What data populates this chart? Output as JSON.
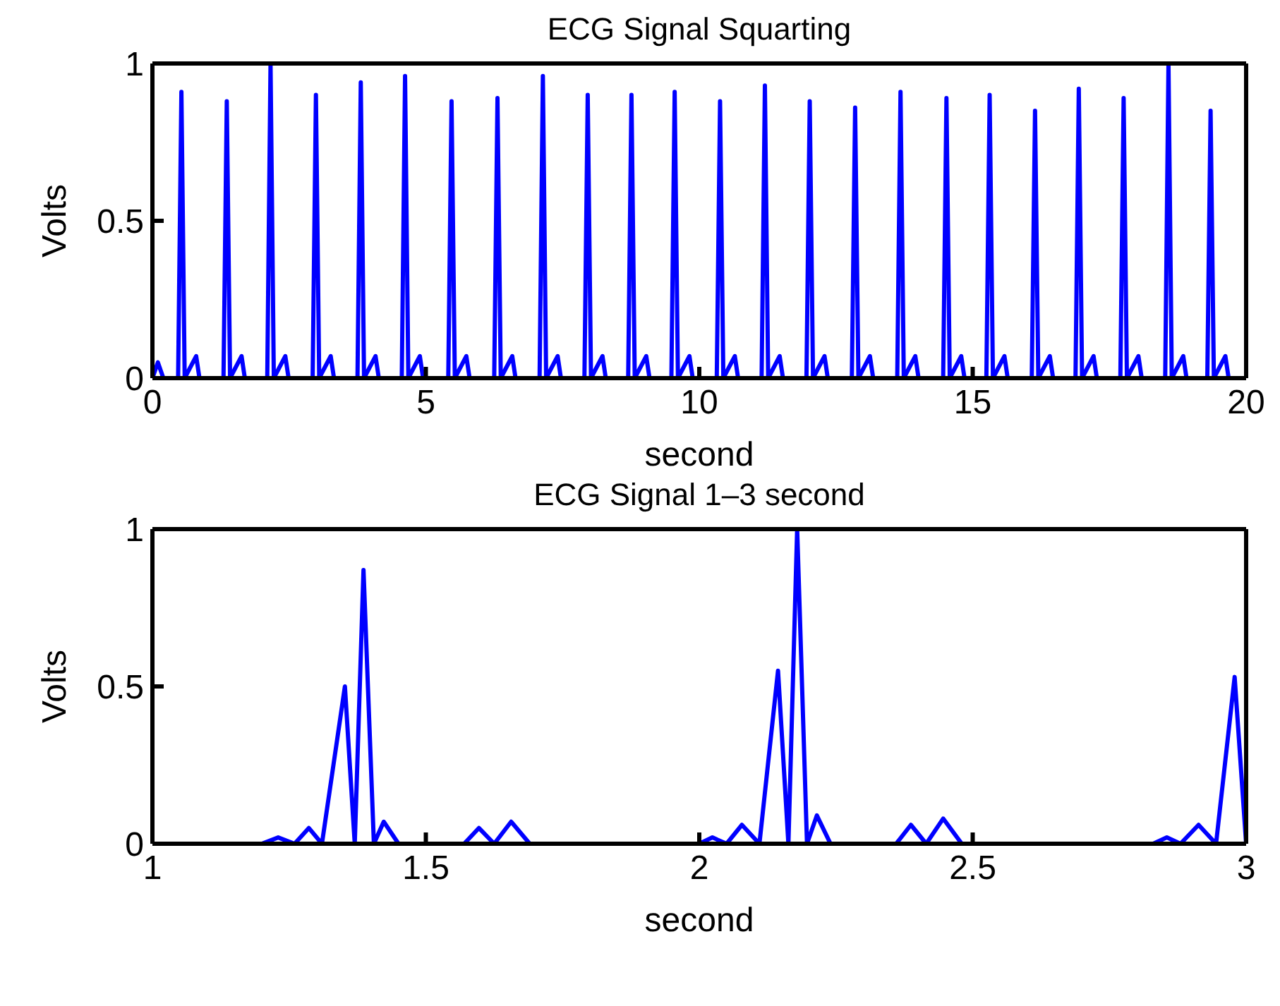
{
  "chart_data": [
    {
      "type": "line",
      "title": "ECG Signal Squarting",
      "xlabel": "second",
      "ylabel": "Volts",
      "x": [
        0,
        0.1,
        0.2,
        0.47,
        0.53,
        0.59,
        0.8,
        0.86,
        1.3,
        1.36,
        1.42,
        1.63,
        1.69,
        2.1,
        2.16,
        2.22,
        2.43,
        2.49,
        2.93,
        2.99,
        3.05,
        3.26,
        3.32,
        3.75,
        3.81,
        3.87,
        4.08,
        4.14,
        4.56,
        4.62,
        4.68,
        4.89,
        4.95,
        5.41,
        5.47,
        5.53,
        5.74,
        5.8,
        6.25,
        6.31,
        6.37,
        6.58,
        6.64,
        7.08,
        7.14,
        7.2,
        7.41,
        7.47,
        7.9,
        7.96,
        8.02,
        8.23,
        8.29,
        8.7,
        8.76,
        8.82,
        9.03,
        9.09,
        9.49,
        9.55,
        9.61,
        9.82,
        9.88,
        10.32,
        10.38,
        10.44,
        10.65,
        10.71,
        11.14,
        11.2,
        11.26,
        11.47,
        11.53,
        11.96,
        12.02,
        12.08,
        12.29,
        12.35,
        12.79,
        12.85,
        12.91,
        13.12,
        13.18,
        13.62,
        13.68,
        13.74,
        13.95,
        14.01,
        14.46,
        14.52,
        14.58,
        14.79,
        14.85,
        15.25,
        15.31,
        15.37,
        15.58,
        15.64,
        16.08,
        16.14,
        16.2,
        16.41,
        16.47,
        16.88,
        16.94,
        17.0,
        17.21,
        17.27,
        17.7,
        17.76,
        17.82,
        18.03,
        18.09,
        18.52,
        18.58,
        18.64,
        18.85,
        18.91,
        19.29,
        19.35,
        19.41,
        19.62,
        19.68,
        20
      ],
      "series": [
        {
          "color": "#0000ff",
          "values": [
            0,
            0.05,
            0,
            0,
            0.91,
            0,
            0.07,
            0,
            0,
            0.88,
            0,
            0.07,
            0,
            0,
            1.0,
            0,
            0.07,
            0,
            0,
            0.9,
            0,
            0.07,
            0,
            0,
            0.94,
            0,
            0.07,
            0,
            0,
            0.96,
            0,
            0.07,
            0,
            0,
            0.88,
            0,
            0.07,
            0,
            0,
            0.89,
            0,
            0.07,
            0,
            0,
            0.96,
            0,
            0.07,
            0,
            0,
            0.9,
            0,
            0.07,
            0,
            0,
            0.9,
            0,
            0.07,
            0,
            0,
            0.91,
            0,
            0.07,
            0,
            0,
            0.88,
            0,
            0.07,
            0,
            0,
            0.93,
            0,
            0.07,
            0,
            0,
            0.88,
            0,
            0.07,
            0,
            0,
            0.86,
            0,
            0.07,
            0,
            0,
            0.91,
            0,
            0.07,
            0,
            0,
            0.89,
            0,
            0.07,
            0,
            0,
            0.9,
            0,
            0.07,
            0,
            0,
            0.85,
            0,
            0.07,
            0,
            0,
            0.92,
            0,
            0.07,
            0,
            0,
            0.89,
            0,
            0.07,
            0,
            0,
            1.0,
            0,
            0.07,
            0,
            0,
            0.85,
            0,
            0.07,
            0,
            0
          ]
        }
      ],
      "xlim": [
        0,
        20
      ],
      "xticks": [
        0,
        5,
        10,
        15,
        20
      ],
      "ylim": [
        0,
        1
      ],
      "yticks": [
        0,
        0.5,
        1
      ],
      "grid": false,
      "legend": false
    },
    {
      "type": "line",
      "title": "ECG Signal 1–3 second",
      "xlabel": "second",
      "ylabel": "Volts",
      "x": [
        1.0,
        1.2,
        1.23,
        1.26,
        1.286,
        1.31,
        1.352,
        1.37,
        1.386,
        1.405,
        1.423,
        1.45,
        1.57,
        1.597,
        1.625,
        1.656,
        1.69,
        2.0,
        2.024,
        2.05,
        2.078,
        2.11,
        2.144,
        2.163,
        2.179,
        2.197,
        2.215,
        2.24,
        2.36,
        2.387,
        2.415,
        2.446,
        2.48,
        2.83,
        2.855,
        2.88,
        2.913,
        2.945,
        2.979,
        3.0
      ],
      "series": [
        {
          "color": "#0000ff",
          "values": [
            0,
            0,
            0.02,
            0,
            0.05,
            0,
            0.5,
            0,
            0.87,
            0,
            0.07,
            0,
            0,
            0.05,
            0,
            0.07,
            0,
            0,
            0.02,
            0,
            0.06,
            0,
            0.55,
            0,
            1.0,
            0,
            0.09,
            0,
            0,
            0.06,
            0,
            0.08,
            0,
            0,
            0.02,
            0,
            0.06,
            0,
            0.53,
            0
          ]
        }
      ],
      "xlim": [
        1,
        3
      ],
      "xticks": [
        1,
        1.5,
        2,
        2.5,
        3
      ],
      "ylim": [
        0,
        1
      ],
      "yticks": [
        0,
        0.5,
        1
      ],
      "grid": false,
      "legend": false
    }
  ]
}
